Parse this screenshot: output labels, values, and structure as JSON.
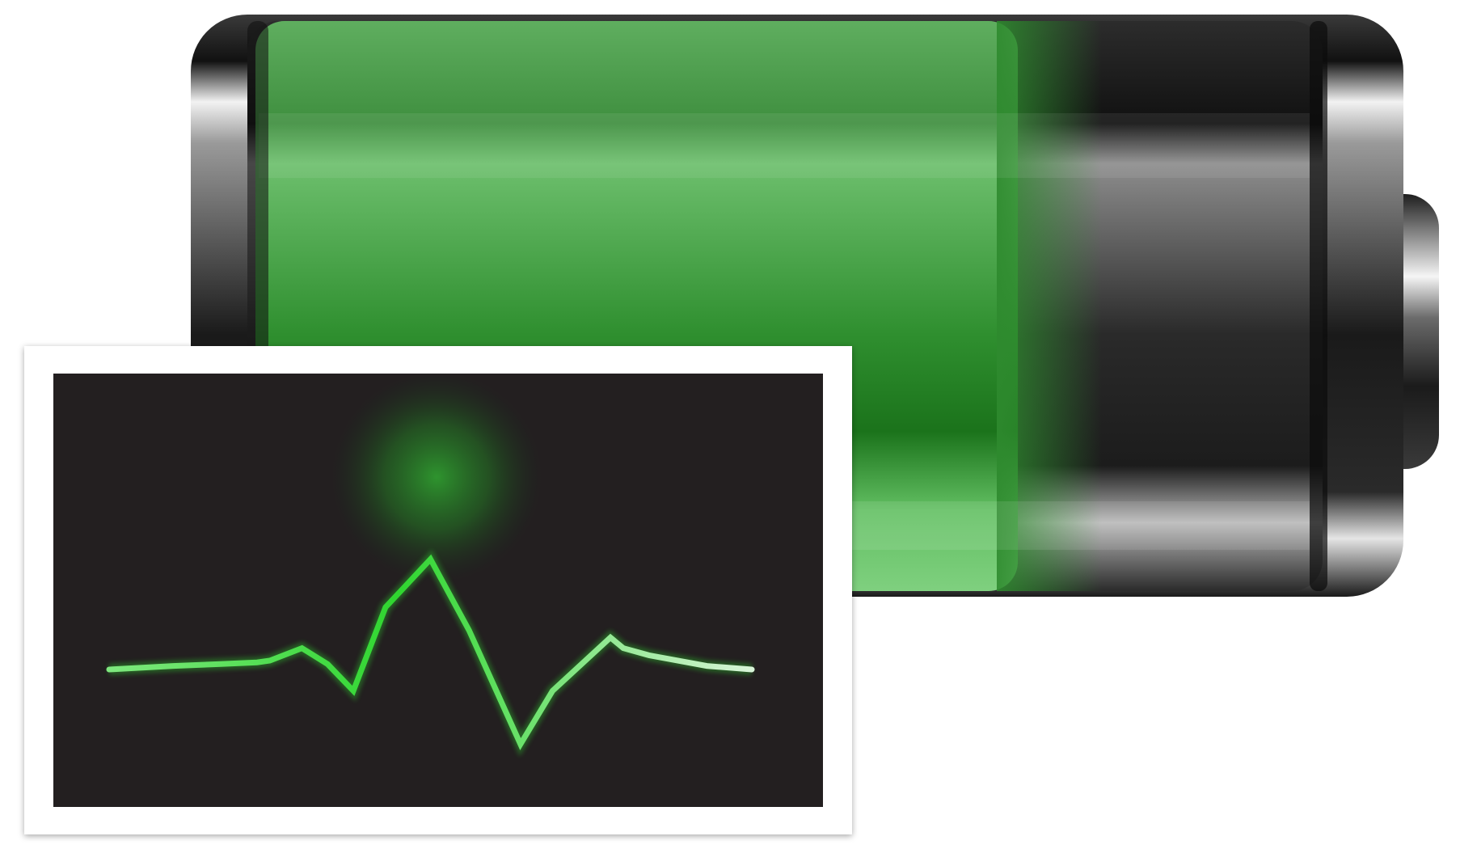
{
  "icon": {
    "name": "battery-health-icon",
    "charge_level_fraction": 0.72,
    "colors": {
      "background": "#ffffff",
      "battery_fill": "#2f8f2f",
      "battery_fill_dark": "#1a6f1a",
      "battery_fill_light": "#66c266",
      "battery_shell": "#1c1c1c",
      "battery_chrome": "#cfcfcf",
      "monitor_frame": "#ffffff",
      "monitor_screen": "#231f20",
      "pulse_line": "#3ee03e",
      "pulse_glow": "#2f9a2f"
    }
  },
  "monitor": {
    "name": "heartbeat-monitor",
    "waveform_samples": [
      0,
      0.02,
      0.03,
      0.04,
      0.05,
      0.12,
      0.03,
      -0.12,
      0.35,
      0.62,
      0.22,
      -0.42,
      -0.12,
      0.18,
      0.12,
      0.08,
      0.02,
      0
    ]
  }
}
